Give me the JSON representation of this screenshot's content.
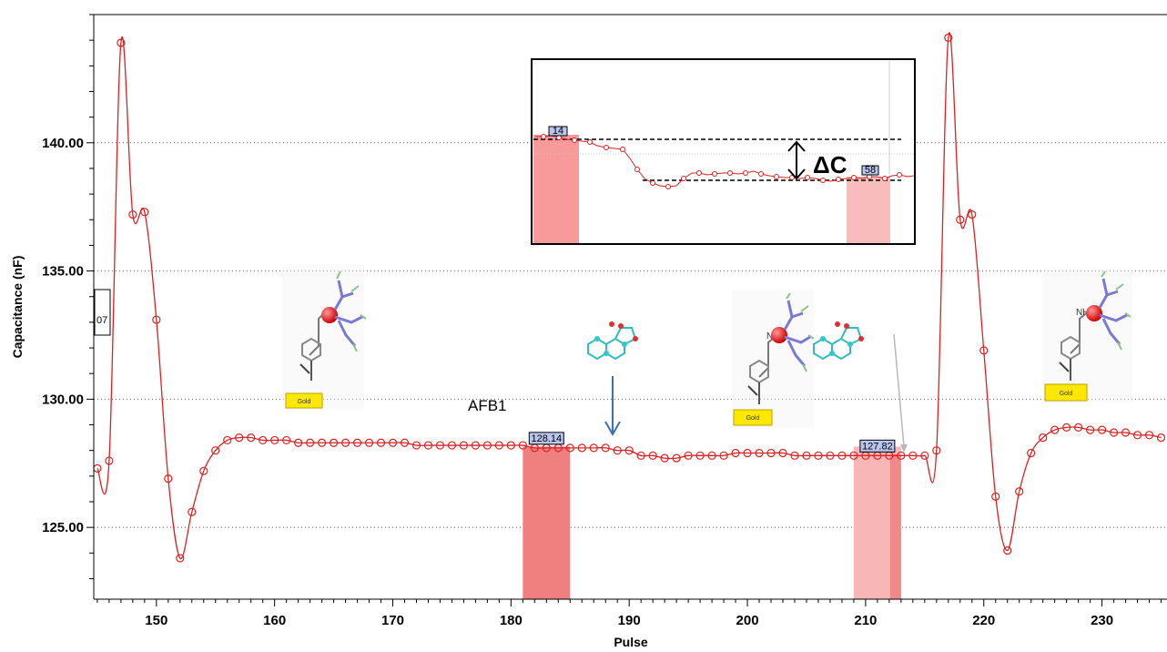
{
  "chart_data": {
    "type": "line",
    "xlabel": "Pulse",
    "ylabel": "Capacitance (nF)",
    "xlim": [
      144.7,
      235.5
    ],
    "ylim": [
      122.2,
      145.0
    ],
    "x_ticks": [
      150,
      160,
      170,
      180,
      190,
      200,
      210,
      220,
      230
    ],
    "y_ticks": [
      125.0,
      130.0,
      135.0,
      140.0
    ],
    "y_tick_labels": [
      "125.00",
      "130.00",
      "135.00",
      "140.00"
    ],
    "grid": "horizontal-dotted",
    "series": [
      {
        "color": "#e02020",
        "x": [
          145,
          146,
          147,
          148,
          149,
          150,
          151,
          152,
          153,
          154,
          155,
          156,
          157,
          158,
          159,
          160,
          161,
          162,
          163,
          164,
          165,
          166,
          167,
          168,
          169,
          170,
          171,
          172,
          173,
          174,
          175,
          176,
          177,
          178,
          179,
          180,
          181,
          182,
          183,
          184,
          185,
          186,
          187,
          188,
          189,
          190,
          191,
          192,
          193,
          194,
          195,
          196,
          197,
          198,
          199,
          200,
          201,
          202,
          203,
          204,
          205,
          206,
          207,
          208,
          209,
          210,
          211,
          212,
          213,
          214,
          215,
          216,
          217,
          218,
          219,
          220,
          221,
          222,
          223,
          224,
          225,
          226,
          227,
          228,
          229,
          230,
          231,
          232,
          233,
          234,
          235
        ],
        "y": [
          127.3,
          127.6,
          143.9,
          137.2,
          137.3,
          133.1,
          126.9,
          123.8,
          125.6,
          127.2,
          128.0,
          128.4,
          128.5,
          128.5,
          128.4,
          128.4,
          128.4,
          128.3,
          128.3,
          128.3,
          128.3,
          128.3,
          128.3,
          128.3,
          128.3,
          128.3,
          128.3,
          128.2,
          128.2,
          128.2,
          128.2,
          128.2,
          128.2,
          128.2,
          128.2,
          128.2,
          128.2,
          128.1,
          128.1,
          128.1,
          128.1,
          128.1,
          128.1,
          128.1,
          128.0,
          128.0,
          127.8,
          127.8,
          127.7,
          127.7,
          127.8,
          127.8,
          127.8,
          127.8,
          127.9,
          127.9,
          127.9,
          127.9,
          127.9,
          127.8,
          127.8,
          127.8,
          127.8,
          127.8,
          127.8,
          127.8,
          127.8,
          127.8,
          127.8,
          127.8,
          127.8,
          128.0,
          144.1,
          137.0,
          137.2,
          131.9,
          126.2,
          124.1,
          126.4,
          127.9,
          128.5,
          128.8,
          128.9,
          128.9,
          128.8,
          128.8,
          128.7,
          128.7,
          128.6,
          128.6,
          128.5
        ]
      }
    ],
    "data_labels": [
      {
        "x": 183,
        "y": 128.1,
        "text": "128.14"
      },
      {
        "x": 211,
        "y": 127.8,
        "text": "127.82"
      },
      {
        "x": 145,
        "y": 133.3,
        "text": "07"
      }
    ],
    "highlight_regions": [
      {
        "x0": 181,
        "x1": 185,
        "color": "#f08080"
      },
      {
        "x0": 209,
        "x1": 213,
        "color": "#f9b6b6"
      }
    ],
    "annotations": {
      "afb1_label": "AFB1",
      "delta_label": "ΔC",
      "gold_label": "Gold"
    },
    "inset": {
      "upper_level_label": "14",
      "lower_level_label": "58"
    }
  }
}
